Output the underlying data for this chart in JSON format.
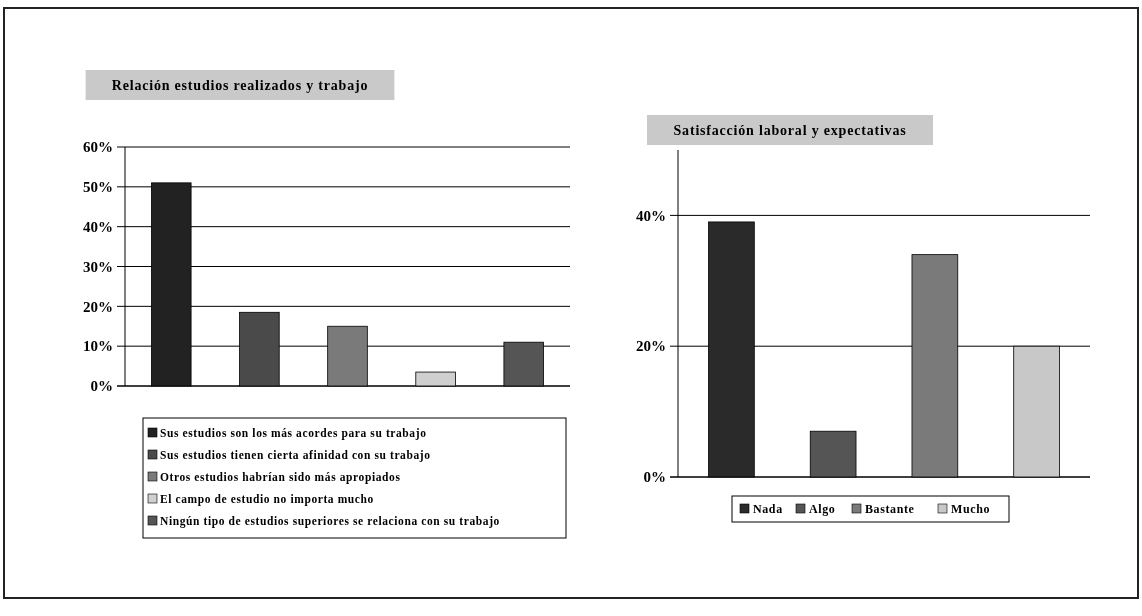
{
  "chart_data": [
    {
      "type": "bar",
      "title": "Relación estudios realizados y trabajo",
      "categories": [
        null
      ],
      "series": [
        {
          "name": "Sus estudios son los más acordes para su trabajo",
          "color": "#222222",
          "values": [
            51
          ]
        },
        {
          "name": "Sus estudios tienen cierta afinidad con su trabajo",
          "color": "#4a4a4a",
          "values": [
            18.5
          ]
        },
        {
          "name": "Otros estudios habrían sido más apropiados",
          "color": "#7a7a7a",
          "values": [
            15
          ]
        },
        {
          "name": "El campo de estudio no importa mucho",
          "color": "#cfcfcf",
          "values": [
            3.5
          ]
        },
        {
          "name": "Ningún tipo de estudios superiores se relaciona con su trabajo",
          "color": "#555555",
          "values": [
            11
          ]
        }
      ],
      "ylim": [
        0,
        60
      ],
      "yticks": [
        {
          "value": 0,
          "label": "0%"
        },
        {
          "value": 10,
          "label": "10%"
        },
        {
          "value": 20,
          "label": "20%"
        },
        {
          "value": 30,
          "label": "30%"
        },
        {
          "value": 40,
          "label": "40%"
        },
        {
          "value": 50,
          "label": "50%"
        },
        {
          "value": 60,
          "label": "60%"
        }
      ],
      "grid": "y",
      "legend": "bottom"
    },
    {
      "type": "bar",
      "title": "Satisfacción laboral y expectativas",
      "categories": [
        null
      ],
      "series": [
        {
          "name": "Nada",
          "color": "#2a2a2a",
          "values": [
            39
          ]
        },
        {
          "name": "Algo",
          "color": "#555555",
          "values": [
            7
          ]
        },
        {
          "name": "Bastante",
          "color": "#7a7a7a",
          "values": [
            34
          ]
        },
        {
          "name": "Mucho",
          "color": "#c8c8c8",
          "values": [
            20
          ]
        }
      ],
      "ylim": [
        0,
        50
      ],
      "yticks": [
        {
          "value": 0,
          "label": "0%"
        },
        {
          "value": 20,
          "label": "20%"
        },
        {
          "value": 40,
          "label": "40%"
        }
      ],
      "grid": "y",
      "legend": "bottom"
    }
  ]
}
